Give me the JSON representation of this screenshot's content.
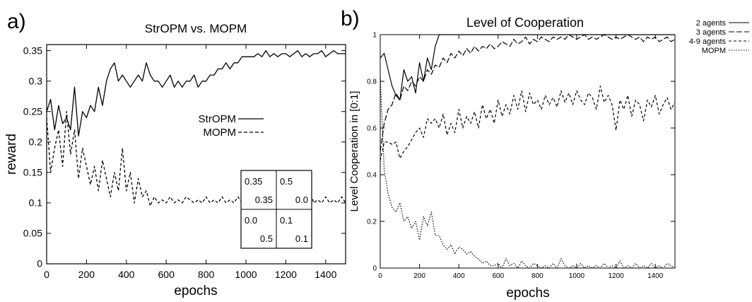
{
  "chart_data": [
    {
      "type": "line",
      "panel_label": "a)",
      "title": "StrOPM vs. MOPM",
      "xlabel": "epochs",
      "ylabel": "reward",
      "xlim": [
        0,
        1500
      ],
      "ylim": [
        0,
        0.36
      ],
      "xticks": [
        0,
        200,
        400,
        600,
        800,
        1000,
        1200,
        1400
      ],
      "yticks": [
        0,
        0.05,
        0.1,
        0.15,
        0.2,
        0.25,
        0.3,
        0.35
      ],
      "grid": false,
      "legend_position": "center-right",
      "series": [
        {
          "name": "StrOPM",
          "style": "solid",
          "x": [
            0,
            20,
            40,
            60,
            80,
            100,
            120,
            140,
            160,
            180,
            200,
            220,
            240,
            260,
            280,
            300,
            320,
            340,
            360,
            380,
            400,
            420,
            440,
            460,
            480,
            500,
            520,
            540,
            560,
            580,
            600,
            620,
            640,
            660,
            680,
            700,
            720,
            740,
            760,
            780,
            800,
            820,
            840,
            860,
            880,
            900,
            920,
            940,
            960,
            980,
            1000,
            1020,
            1040,
            1060,
            1080,
            1100,
            1120,
            1140,
            1160,
            1180,
            1200,
            1220,
            1240,
            1260,
            1280,
            1300,
            1320,
            1340,
            1360,
            1380,
            1400,
            1420,
            1440,
            1460,
            1480,
            1500
          ],
          "y": [
            0.25,
            0.27,
            0.22,
            0.26,
            0.23,
            0.24,
            0.22,
            0.29,
            0.21,
            0.25,
            0.24,
            0.26,
            0.25,
            0.29,
            0.26,
            0.3,
            0.32,
            0.33,
            0.3,
            0.31,
            0.3,
            0.29,
            0.3,
            0.31,
            0.3,
            0.33,
            0.31,
            0.3,
            0.3,
            0.29,
            0.3,
            0.31,
            0.29,
            0.3,
            0.29,
            0.3,
            0.3,
            0.31,
            0.29,
            0.3,
            0.3,
            0.31,
            0.31,
            0.32,
            0.32,
            0.33,
            0.32,
            0.33,
            0.33,
            0.34,
            0.34,
            0.34,
            0.34,
            0.345,
            0.34,
            0.35,
            0.34,
            0.345,
            0.34,
            0.345,
            0.345,
            0.34,
            0.345,
            0.35,
            0.34,
            0.345,
            0.34,
            0.345,
            0.345,
            0.35,
            0.34,
            0.345,
            0.35,
            0.345,
            0.345,
            0.345
          ]
        },
        {
          "name": "MOPM",
          "style": "dashed",
          "x": [
            0,
            20,
            40,
            60,
            80,
            100,
            120,
            140,
            160,
            180,
            200,
            220,
            240,
            260,
            280,
            300,
            320,
            340,
            360,
            380,
            400,
            420,
            440,
            460,
            480,
            500,
            520,
            540,
            560,
            580,
            600,
            620,
            640,
            660,
            680,
            700,
            720,
            740,
            760,
            780,
            800,
            820,
            840,
            860,
            880,
            900,
            920,
            940,
            960,
            980,
            1000,
            1020,
            1040,
            1060,
            1080,
            1100,
            1120,
            1140,
            1160,
            1180,
            1200,
            1220,
            1240,
            1260,
            1280,
            1300,
            1320,
            1340,
            1360,
            1380,
            1400,
            1420,
            1440,
            1460,
            1480,
            1500
          ],
          "y": [
            0.24,
            0.15,
            0.19,
            0.22,
            0.16,
            0.25,
            0.18,
            0.22,
            0.14,
            0.19,
            0.16,
            0.13,
            0.16,
            0.12,
            0.17,
            0.14,
            0.11,
            0.15,
            0.12,
            0.19,
            0.12,
            0.15,
            0.1,
            0.14,
            0.11,
            0.12,
            0.095,
            0.11,
            0.1,
            0.105,
            0.1,
            0.11,
            0.1,
            0.105,
            0.1,
            0.11,
            0.105,
            0.1,
            0.105,
            0.1,
            0.11,
            0.1,
            0.105,
            0.1,
            0.11,
            0.1,
            0.105,
            0.1,
            0.11,
            0.1,
            0.12,
            0.1,
            0.105,
            0.1,
            0.11,
            0.1,
            0.105,
            0.1,
            0.11,
            0.1,
            0.105,
            0.1,
            0.11,
            0.1,
            0.105,
            0.1,
            0.12,
            0.1,
            0.105,
            0.1,
            0.11,
            0.1,
            0.105,
            0.1,
            0.11,
            0.1
          ]
        }
      ],
      "inset_matrix": [
        [
          "0.35",
          "0.35",
          "0.5",
          "0.0"
        ],
        [
          "0.0",
          "0.5",
          "0.1",
          "0.1"
        ]
      ]
    },
    {
      "type": "line",
      "panel_label": "b)",
      "title": "Level of Cooperation",
      "xlabel": "epochs",
      "ylabel": "Level Cooperation in [0:1]",
      "xlim": [
        0,
        1500
      ],
      "ylim": [
        0,
        1
      ],
      "xticks": [
        0,
        200,
        400,
        600,
        800,
        1000,
        1200,
        1400
      ],
      "yticks": [
        0,
        0.2,
        0.4,
        0.6,
        0.8,
        1
      ],
      "grid": false,
      "legend_position": "outside-right",
      "series": [
        {
          "name": "2 agents",
          "style": "solid",
          "x": [
            0,
            20,
            40,
            60,
            80,
            100,
            120,
            140,
            160,
            180,
            200,
            220,
            240,
            260,
            280,
            300,
            320,
            340,
            360,
            380,
            400,
            420,
            440,
            460,
            480,
            500,
            520,
            540,
            560,
            580,
            600,
            620,
            640,
            660,
            680,
            700,
            720,
            740,
            760,
            780,
            800,
            820,
            840,
            860,
            880,
            900,
            920,
            940,
            960,
            980,
            1000,
            1020,
            1040,
            1060,
            1080,
            1100,
            1120,
            1140,
            1160,
            1180,
            1200,
            1220,
            1240,
            1260,
            1280,
            1300,
            1320,
            1340,
            1360,
            1380,
            1400,
            1420,
            1440,
            1460,
            1480,
            1500
          ],
          "y": [
            0.9,
            0.92,
            0.85,
            0.78,
            0.74,
            0.72,
            0.85,
            0.8,
            0.82,
            0.75,
            0.88,
            0.8,
            0.9,
            0.85,
            0.95,
            1.0,
            1.0,
            1.0,
            1.0,
            1.0,
            1.0,
            1.0,
            1.0,
            1.0,
            1.0,
            1.0,
            1.0,
            1.0,
            1.0,
            1.0,
            1.0,
            1.0,
            1.0,
            1.0,
            1.0,
            1.0,
            1.0,
            1.0,
            1.0,
            1.0,
            1.0,
            1.0,
            1.0,
            1.0,
            1.0,
            1.0,
            1.0,
            1.0,
            1.0,
            1.0,
            1.0,
            1.0,
            1.0,
            1.0,
            1.0,
            1.0,
            1.0,
            1.0,
            1.0,
            1.0,
            1.0,
            1.0,
            1.0,
            1.0,
            1.0,
            1.0,
            1.0,
            1.0,
            1.0,
            1.0,
            1.0,
            1.0,
            1.0,
            1.0,
            1.0,
            1.0
          ]
        },
        {
          "name": "3 agents",
          "style": "long-dash",
          "x": [
            0,
            20,
            40,
            60,
            80,
            100,
            120,
            140,
            160,
            180,
            200,
            220,
            240,
            260,
            280,
            300,
            320,
            340,
            360,
            380,
            400,
            420,
            440,
            460,
            480,
            500,
            520,
            540,
            560,
            580,
            600,
            620,
            640,
            660,
            680,
            700,
            720,
            740,
            760,
            780,
            800,
            820,
            840,
            860,
            880,
            900,
            920,
            940,
            960,
            980,
            1000,
            1020,
            1040,
            1060,
            1080,
            1100,
            1120,
            1140,
            1160,
            1180,
            1200,
            1220,
            1240,
            1260,
            1280,
            1300,
            1320,
            1340,
            1360,
            1380,
            1400,
            1420,
            1440,
            1460,
            1480,
            1500
          ],
          "y": [
            0.5,
            0.62,
            0.68,
            0.7,
            0.75,
            0.72,
            0.78,
            0.76,
            0.8,
            0.78,
            0.82,
            0.8,
            0.85,
            0.83,
            0.87,
            0.86,
            0.9,
            0.88,
            0.92,
            0.9,
            0.93,
            0.91,
            0.94,
            0.92,
            0.95,
            0.93,
            0.95,
            0.94,
            0.96,
            0.94,
            0.95,
            0.97,
            0.96,
            0.95,
            0.98,
            0.96,
            0.97,
            0.99,
            0.96,
            0.98,
            0.97,
            0.99,
            0.98,
            0.97,
            0.99,
            0.98,
            0.99,
            0.98,
            1.0,
            0.99,
            0.98,
            0.99,
            1.0,
            0.98,
            0.99,
            0.98,
            0.99,
            1.0,
            0.99,
            0.98,
            0.99,
            0.98,
            0.99,
            1.0,
            0.99,
            0.98,
            0.99,
            0.97,
            0.99,
            0.98,
            0.99,
            0.97,
            0.98,
            0.99,
            0.97,
            0.98
          ]
        },
        {
          "name": "4-9 agents",
          "style": "dashed",
          "x": [
            0,
            20,
            40,
            60,
            80,
            100,
            120,
            140,
            160,
            180,
            200,
            220,
            240,
            260,
            280,
            300,
            320,
            340,
            360,
            380,
            400,
            420,
            440,
            460,
            480,
            500,
            520,
            540,
            560,
            580,
            600,
            620,
            640,
            660,
            680,
            700,
            720,
            740,
            760,
            780,
            800,
            820,
            840,
            860,
            880,
            900,
            920,
            940,
            960,
            980,
            1000,
            1020,
            1040,
            1060,
            1080,
            1100,
            1120,
            1140,
            1160,
            1180,
            1200,
            1220,
            1240,
            1260,
            1280,
            1300,
            1320,
            1340,
            1360,
            1380,
            1400,
            1420,
            1440,
            1460,
            1480,
            1500
          ],
          "y": [
            0.46,
            0.54,
            0.54,
            0.53,
            0.54,
            0.47,
            0.5,
            0.52,
            0.55,
            0.58,
            0.6,
            0.56,
            0.64,
            0.62,
            0.64,
            0.6,
            0.66,
            0.57,
            0.62,
            0.58,
            0.68,
            0.6,
            0.65,
            0.62,
            0.67,
            0.6,
            0.7,
            0.64,
            0.68,
            0.62,
            0.72,
            0.65,
            0.7,
            0.66,
            0.74,
            0.68,
            0.76,
            0.67,
            0.75,
            0.7,
            0.72,
            0.68,
            0.74,
            0.7,
            0.73,
            0.69,
            0.76,
            0.71,
            0.75,
            0.7,
            0.76,
            0.72,
            0.7,
            0.75,
            0.73,
            0.68,
            0.78,
            0.71,
            0.74,
            0.7,
            0.59,
            0.72,
            0.68,
            0.74,
            0.65,
            0.72,
            0.7,
            0.63,
            0.72,
            0.69,
            0.74,
            0.66,
            0.7,
            0.73,
            0.68,
            0.71
          ]
        },
        {
          "name": "MOPM",
          "style": "dotted",
          "x": [
            0,
            20,
            40,
            60,
            80,
            100,
            120,
            140,
            160,
            180,
            200,
            220,
            240,
            260,
            280,
            300,
            320,
            340,
            360,
            380,
            400,
            420,
            440,
            460,
            480,
            500,
            520,
            540,
            560,
            580,
            600,
            620,
            640,
            660,
            680,
            700,
            720,
            740,
            760,
            780,
            800,
            820,
            840,
            860,
            880,
            900,
            920,
            940,
            960,
            980,
            1000,
            1020,
            1040,
            1060,
            1080,
            1100,
            1120,
            1140,
            1160,
            1180,
            1200,
            1220,
            1240,
            1260,
            1280,
            1300,
            1320,
            1340,
            1360,
            1380,
            1400,
            1420,
            1440,
            1460,
            1480,
            1500
          ],
          "y": [
            0.82,
            0.42,
            0.32,
            0.26,
            0.24,
            0.28,
            0.2,
            0.22,
            0.17,
            0.2,
            0.12,
            0.22,
            0.18,
            0.24,
            0.14,
            0.14,
            0.1,
            0.08,
            0.1,
            0.06,
            0.09,
            0.08,
            0.06,
            0.07,
            0.05,
            0.04,
            0.02,
            0.03,
            0.01,
            0.01,
            0.02,
            0.0,
            0.04,
            0.01,
            0.02,
            0.0,
            0.03,
            0.01,
            0.0,
            0.02,
            0.01,
            0.0,
            0.01,
            0.0,
            0.02,
            0.0,
            0.04,
            0.01,
            0.0,
            0.01,
            0.0,
            0.02,
            0.0,
            0.01,
            0.0,
            0.01,
            0.0,
            0.02,
            0.0,
            0.01,
            0.0,
            0.03,
            0.0,
            0.01,
            0.0,
            0.02,
            0.0,
            0.01,
            0.0,
            0.02,
            0.0,
            0.01,
            0.0,
            0.02,
            0.01,
            0.0
          ]
        }
      ]
    }
  ]
}
